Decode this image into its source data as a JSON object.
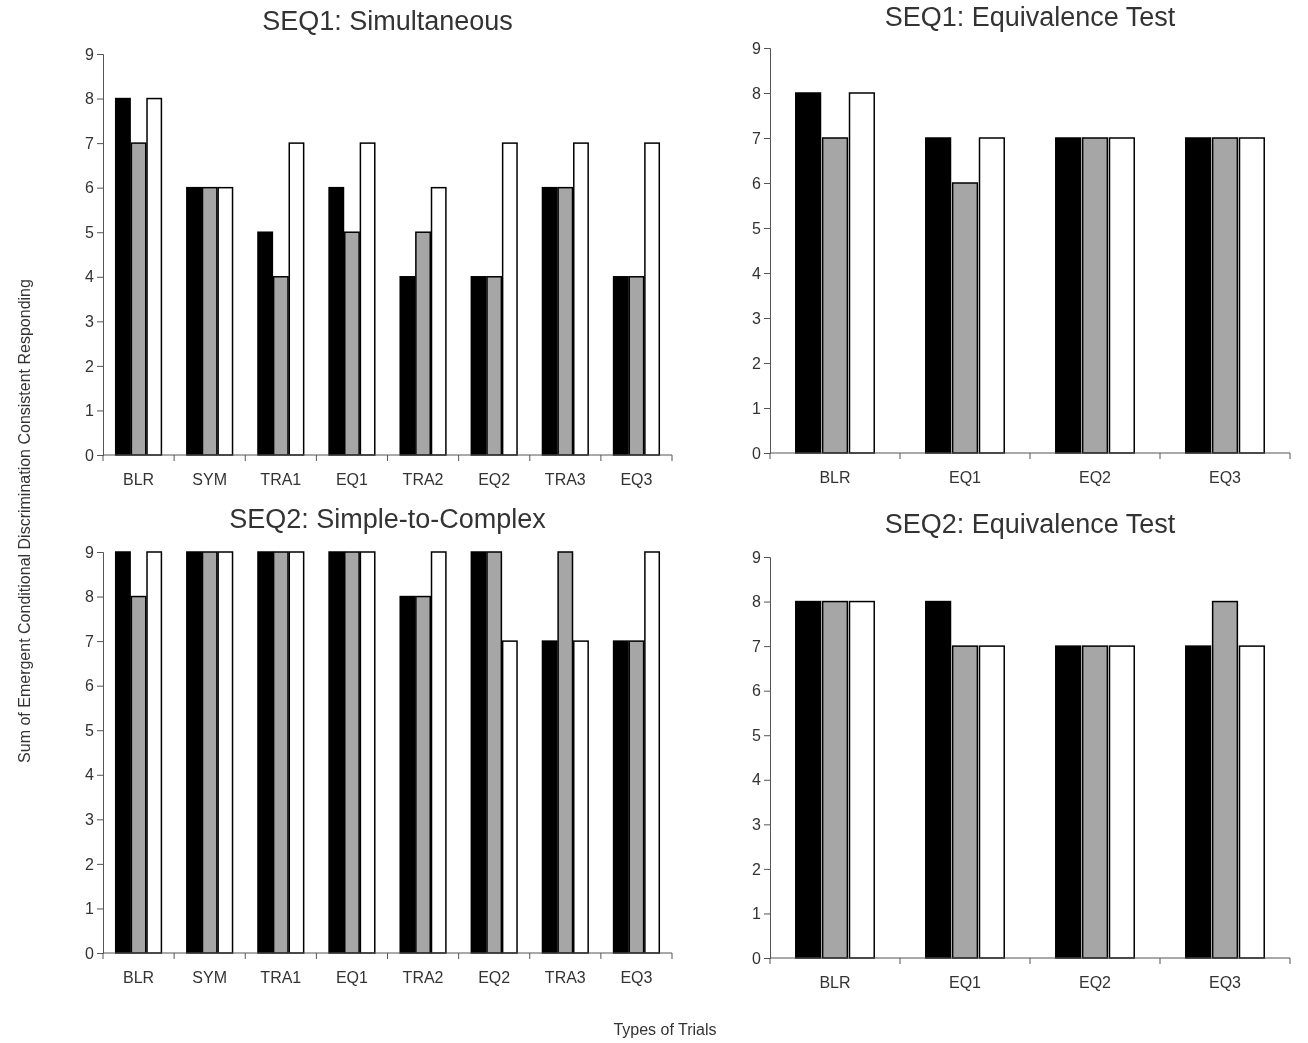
{
  "chart_data": [
    {
      "type": "bar",
      "title": "SEQ1: Simultaneous",
      "ylabel": "Sum of Emergent Conditional Discrimination Consistent Responding",
      "categories": [
        "BLR",
        "SYM",
        "TRA1",
        "EQ1",
        "TRA2",
        "EQ2",
        "TRA3",
        "EQ3"
      ],
      "ylim": [
        0,
        9
      ],
      "yticks": [
        0,
        1,
        2,
        3,
        4,
        5,
        6,
        7,
        8,
        9
      ],
      "series": [
        {
          "color": "#000000",
          "values": [
            8,
            6,
            5,
            6,
            4,
            4,
            6,
            4
          ]
        },
        {
          "color": "#a6a6a6",
          "values": [
            7,
            6,
            4,
            5,
            5,
            4,
            6,
            4
          ]
        },
        {
          "color": "#ffffff",
          "values": [
            8,
            6,
            7,
            7,
            6,
            7,
            7,
            7
          ]
        }
      ]
    },
    {
      "type": "bar",
      "title": "SEQ1: Equivalence Test",
      "categories": [
        "BLR",
        "EQ1",
        "EQ2",
        "EQ3"
      ],
      "ylim": [
        0,
        9
      ],
      "yticks": [
        0,
        1,
        2,
        3,
        4,
        5,
        6,
        7,
        8,
        9
      ],
      "series": [
        {
          "color": "#000000",
          "values": [
            8,
            7,
            7,
            7
          ]
        },
        {
          "color": "#a6a6a6",
          "values": [
            7,
            6,
            7,
            7
          ]
        },
        {
          "color": "#ffffff",
          "values": [
            8,
            7,
            7,
            7
          ]
        }
      ]
    },
    {
      "type": "bar",
      "title": "SEQ2: Simple-to-Complex",
      "xlabel": "Types of Trials",
      "categories": [
        "BLR",
        "SYM",
        "TRA1",
        "EQ1",
        "TRA2",
        "EQ2",
        "TRA3",
        "EQ3"
      ],
      "ylim": [
        0,
        9
      ],
      "yticks": [
        0,
        1,
        2,
        3,
        4,
        5,
        6,
        7,
        8,
        9
      ],
      "series": [
        {
          "color": "#000000",
          "values": [
            9,
            9,
            9,
            9,
            8,
            9,
            7,
            7
          ]
        },
        {
          "color": "#a6a6a6",
          "values": [
            8,
            9,
            9,
            9,
            8,
            9,
            9,
            7
          ]
        },
        {
          "color": "#ffffff",
          "values": [
            9,
            9,
            9,
            9,
            9,
            7,
            7,
            9
          ]
        }
      ]
    },
    {
      "type": "bar",
      "title": "SEQ2: Equivalence Test",
      "categories": [
        "BLR",
        "EQ1",
        "EQ2",
        "EQ3"
      ],
      "ylim": [
        0,
        9
      ],
      "yticks": [
        0,
        1,
        2,
        3,
        4,
        5,
        6,
        7,
        8,
        9
      ],
      "series": [
        {
          "color": "#000000",
          "values": [
            8,
            8,
            7,
            7
          ]
        },
        {
          "color": "#a6a6a6",
          "values": [
            8,
            7,
            7,
            8
          ]
        },
        {
          "color": "#ffffff",
          "values": [
            8,
            7,
            7,
            7
          ]
        }
      ]
    }
  ]
}
